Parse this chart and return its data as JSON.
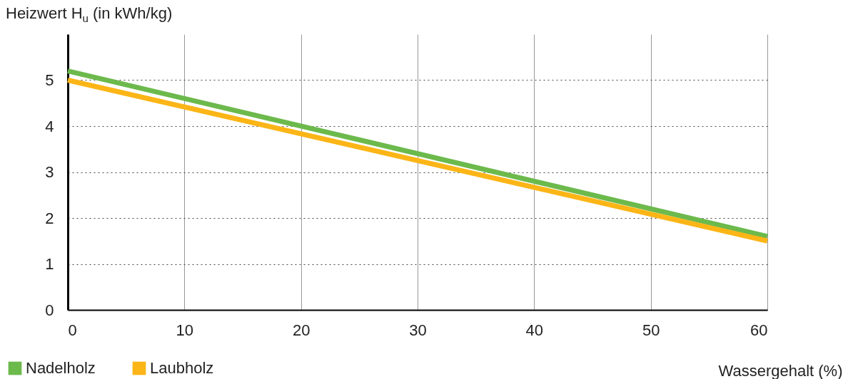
{
  "chart_data": {
    "type": "line",
    "ylabel": "Heizwert H$_{u}$ (in kWh/kg)",
    "xlabel": "Wassergehalt (%)",
    "x": [
      0,
      60
    ],
    "series": [
      {
        "name": "Nadelholz",
        "color": "#6cb94c",
        "values": [
          5.2,
          1.6
        ]
      },
      {
        "name": "Laubholz",
        "color": "#fbb516",
        "values": [
          5.0,
          1.5
        ]
      }
    ],
    "xlim": [
      0,
      60
    ],
    "xticks": [
      0,
      10,
      20,
      30,
      40,
      50,
      60
    ],
    "ylim": [
      0,
      6
    ],
    "yticks": [
      0,
      1,
      2,
      3,
      4,
      5
    ],
    "grid": true,
    "legend": "bottom left"
  }
}
